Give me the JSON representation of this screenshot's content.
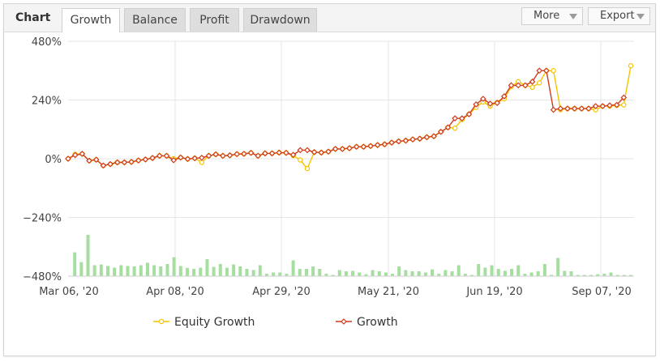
{
  "header": {
    "title": "Chart",
    "tabs": [
      {
        "label": "Growth",
        "active": true
      },
      {
        "label": "Balance",
        "active": false
      },
      {
        "label": "Profit",
        "active": false
      },
      {
        "label": "Drawdown",
        "active": false
      }
    ],
    "more_label": "More",
    "export_label": "Export"
  },
  "colors": {
    "equity": "#f5c400",
    "growth": "#d03c1c",
    "bars": "#a6dea0",
    "grid": "#e6e6e6"
  },
  "chart_data": {
    "type": "line",
    "ylim": [
      -480,
      480
    ],
    "yticks": [
      "480%",
      "240%",
      "0%",
      "−240%",
      "−480%"
    ],
    "xtick_labels": [
      "Mar 06, '20",
      "Apr 08, '20",
      "Apr 29, '20",
      "May 21, '20",
      "Jun 19, '20",
      "Sep 07, '20"
    ],
    "series": [
      {
        "name": "Equity Growth",
        "values": [
          0,
          18,
          20,
          -8,
          -4,
          -28,
          -22,
          -15,
          -15,
          -13,
          -7,
          -3,
          3,
          12,
          12,
          0,
          5,
          -1,
          2,
          -15,
          12,
          18,
          12,
          14,
          19,
          20,
          24,
          12,
          22,
          22,
          25,
          24,
          13,
          -5,
          -40,
          27,
          25,
          29,
          40,
          40,
          43,
          49,
          49,
          52,
          56,
          59,
          66,
          71,
          74,
          79,
          82,
          88,
          92,
          110,
          128,
          125,
          160,
          182,
          210,
          232,
          215,
          230,
          245,
          295,
          315,
          300,
          292,
          310,
          360,
          360,
          200,
          205,
          205,
          205,
          205,
          200,
          215,
          215,
          218,
          220,
          380
        ]
      },
      {
        "name": "Growth",
        "values": [
          0,
          15,
          20,
          -8,
          -4,
          -28,
          -22,
          -15,
          -15,
          -13,
          -7,
          -3,
          3,
          12,
          12,
          -6,
          5,
          -1,
          2,
          4,
          12,
          18,
          12,
          14,
          19,
          20,
          24,
          12,
          22,
          22,
          25,
          24,
          16,
          35,
          35,
          27,
          25,
          29,
          40,
          40,
          43,
          49,
          49,
          52,
          56,
          59,
          66,
          71,
          74,
          79,
          82,
          88,
          92,
          110,
          128,
          165,
          165,
          182,
          222,
          245,
          225,
          228,
          255,
          300,
          300,
          300,
          315,
          360,
          360,
          200,
          205,
          205,
          205,
          205,
          205,
          215,
          215,
          218,
          220,
          250
        ]
      }
    ],
    "bars": [
      0,
      98,
      58,
      170,
      45,
      48,
      42,
      35,
      45,
      42,
      40,
      45,
      55,
      45,
      40,
      50,
      78,
      42,
      34,
      30,
      35,
      70,
      38,
      50,
      35,
      48,
      40,
      30,
      25,
      45,
      10,
      15,
      15,
      10,
      65,
      30,
      30,
      40,
      30,
      10,
      5,
      25,
      20,
      22,
      15,
      8,
      25,
      20,
      15,
      10,
      40,
      25,
      20,
      20,
      15,
      28,
      10,
      25,
      20,
      45,
      10,
      5,
      50,
      35,
      45,
      30,
      22,
      30,
      45,
      10,
      15,
      20,
      50,
      5,
      75,
      22,
      20,
      5,
      5,
      5,
      8,
      10,
      15,
      5,
      5,
      5
    ]
  }
}
